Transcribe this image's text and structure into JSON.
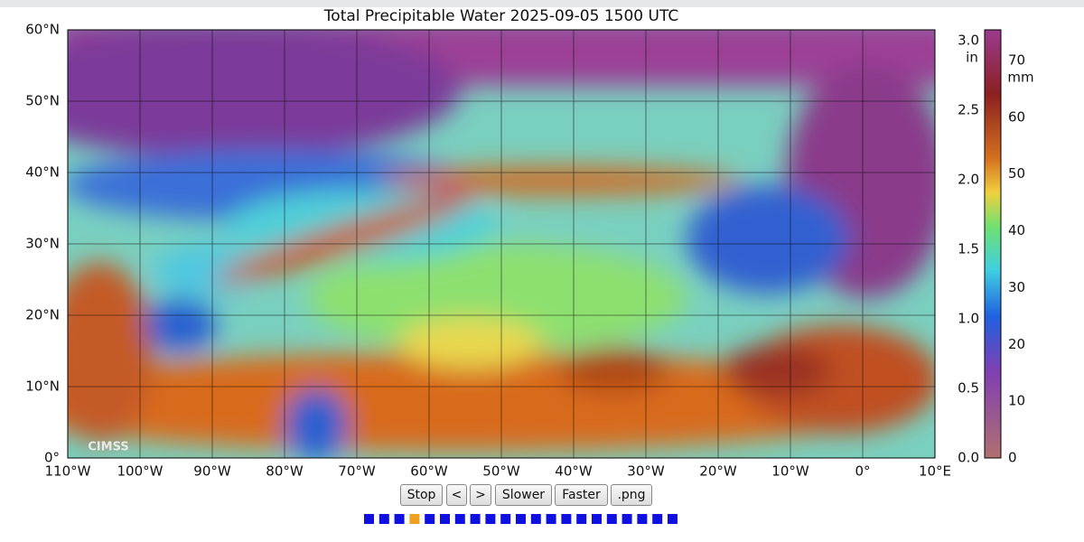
{
  "header": {
    "title": "Total Precipitable Water  2025-09-05 1500 UTC"
  },
  "map": {
    "lat_labels": [
      "60°N",
      "50°N",
      "40°N",
      "30°N",
      "20°N",
      "10°N",
      "0°"
    ],
    "lon_labels": [
      "110°W",
      "100°W",
      "90°W",
      "80°W",
      "70°W",
      "60°W",
      "50°W",
      "40°W",
      "30°W",
      "20°W",
      "10°W",
      "0°",
      "10°E"
    ],
    "logo": "CIMSS"
  },
  "colorbar": {
    "left_unit": "in",
    "left_labels": [
      "3.0",
      "2.5",
      "2.0",
      "1.5",
      "1.0",
      "0.5",
      "0.0"
    ],
    "right_unit": "mm",
    "right_labels": [
      "70",
      "60",
      "50",
      "40",
      "30",
      "20",
      "10",
      "0"
    ]
  },
  "controls": {
    "buttons": [
      "Stop",
      "<",
      ">",
      "Slower",
      "Faster",
      ".png"
    ]
  }
}
